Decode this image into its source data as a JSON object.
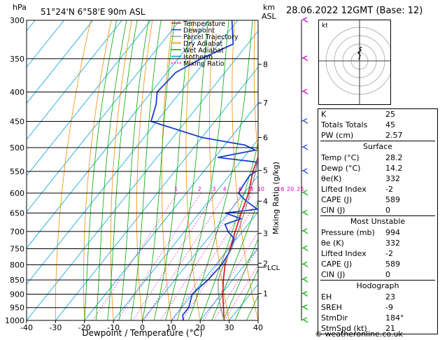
{
  "header": {
    "pressure_unit": "hPa",
    "location": "51°24'N  6°58'E  90m  ASL",
    "height_unit_line1": "km",
    "height_unit_line2": "ASL",
    "datetime": "28.06.2022  12GMT  (Base: 12)"
  },
  "legend": [
    {
      "label": "Temperature",
      "color": "#e02020",
      "dash": ""
    },
    {
      "label": "Dewpoint",
      "color": "#1a3fd0",
      "dash": ""
    },
    {
      "label": "Parcel Trajectory",
      "color": "#999999",
      "dash": ""
    },
    {
      "label": "Dry Adiabat",
      "color": "#f08c00",
      "dash": ""
    },
    {
      "label": "Wet Adiabat",
      "color": "#00aa00",
      "dash": ""
    },
    {
      "label": "Isotherm",
      "color": "#00a0e0",
      "dash": ""
    },
    {
      "label": "Mixing Ratio",
      "color": "#e000c0",
      "dash": "2,2"
    }
  ],
  "chart_data": {
    "type": "line",
    "xlabel": "Dewpoint / Temperature (°C)",
    "ylabel_right": "Mixing Ratio (g/kg)",
    "x_ticks": [
      -40,
      -30,
      -20,
      -10,
      0,
      10,
      20,
      30,
      40
    ],
    "pressure_levels": [
      300,
      350,
      400,
      450,
      500,
      550,
      600,
      650,
      700,
      750,
      800,
      850,
      900,
      950,
      1000
    ],
    "height_km": [
      {
        "km": 8,
        "p": 358
      },
      {
        "km": 7,
        "p": 418
      },
      {
        "km": 6,
        "p": 480
      },
      {
        "km": 5,
        "p": 548
      },
      {
        "km": 4,
        "p": 620
      },
      {
        "km": 3,
        "p": 705
      },
      {
        "km": 2,
        "p": 795
      },
      {
        "km": 1,
        "p": 898
      }
    ],
    "lcl_label": "LCL",
    "lcl_p": 808,
    "mixing_ratio_labels": [
      "1",
      "2",
      "3",
      "4",
      "6",
      "8",
      "10",
      "16",
      "20",
      "25"
    ],
    "series": [
      {
        "name": "Temperature",
        "color": "#e02020",
        "points": [
          [
            1000,
            28.2
          ],
          [
            950,
            24.5
          ],
          [
            900,
            20.5
          ],
          [
            850,
            16.8
          ],
          [
            800,
            13.2
          ],
          [
            750,
            10.5
          ],
          [
            700,
            7.5
          ],
          [
            650,
            4.5
          ],
          [
            600,
            1.5
          ],
          [
            550,
            -3
          ],
          [
            500,
            -6.5
          ],
          [
            450,
            -11
          ],
          [
            400,
            -17.5
          ],
          [
            350,
            -25
          ],
          [
            300,
            -33
          ]
        ]
      },
      {
        "name": "Dewpoint",
        "color": "#1a3fd0",
        "points": [
          [
            1000,
            14.2
          ],
          [
            980,
            12.5
          ],
          [
            950,
            12.5
          ],
          [
            920,
            11
          ],
          [
            900,
            10
          ],
          [
            880,
            10.5
          ],
          [
            850,
            11.5
          ],
          [
            800,
            12
          ],
          [
            750,
            11
          ],
          [
            720,
            9
          ],
          [
            700,
            5
          ],
          [
            680,
            2
          ],
          [
            665,
            6
          ],
          [
            650,
            -1
          ],
          [
            640,
            9
          ],
          [
            620,
            3
          ],
          [
            600,
            -2
          ],
          [
            560,
            -3
          ],
          [
            550,
            -2
          ],
          [
            530,
            -4
          ],
          [
            520,
            -19
          ],
          [
            505,
            -8
          ],
          [
            495,
            -13
          ],
          [
            480,
            -30
          ],
          [
            450,
            -52
          ],
          [
            420,
            -55
          ],
          [
            400,
            -58
          ],
          [
            370,
            -57
          ],
          [
            350,
            -52
          ],
          [
            330,
            -45
          ],
          [
            300,
            -52
          ]
        ]
      },
      {
        "name": "Parcel Trajectory",
        "color": "#999999",
        "points": [
          [
            1000,
            28.2
          ],
          [
            950,
            23.5
          ],
          [
            900,
            19
          ],
          [
            850,
            15
          ],
          [
            808,
            13
          ],
          [
            750,
            11
          ],
          [
            700,
            8.5
          ],
          [
            650,
            5.5
          ],
          [
            600,
            2
          ],
          [
            550,
            -2
          ],
          [
            500,
            -7
          ],
          [
            450,
            -12.5
          ],
          [
            400,
            -19
          ],
          [
            350,
            -27
          ],
          [
            300,
            -36
          ]
        ]
      }
    ]
  },
  "indices": {
    "rows": [
      {
        "k": "K",
        "v": "25"
      },
      {
        "k": "Totals Totals",
        "v": "45"
      },
      {
        "k": "PW (cm)",
        "v": "2.57"
      }
    ]
  },
  "surface": {
    "title": "Surface",
    "rows": [
      {
        "k": "Temp (°C)",
        "v": "28.2"
      },
      {
        "k": "Dewp (°C)",
        "v": "14.2"
      },
      {
        "k": "θe(K)",
        "v": "332"
      },
      {
        "k": "Lifted Index",
        "v": "-2"
      },
      {
        "k": "CAPE (J)",
        "v": "589"
      },
      {
        "k": "CIN (J)",
        "v": "0"
      }
    ]
  },
  "most_unstable": {
    "title": "Most Unstable",
    "rows": [
      {
        "k": "Pressure (mb)",
        "v": "994"
      },
      {
        "k": "θe (K)",
        "v": "332"
      },
      {
        "k": "Lifted Index",
        "v": "-2"
      },
      {
        "k": "CAPE (J)",
        "v": "589"
      },
      {
        "k": "CIN (J)",
        "v": "0"
      }
    ]
  },
  "hodograph": {
    "title": "Hodograph",
    "label": "kt",
    "rows": [
      {
        "k": "EH",
        "v": "23"
      },
      {
        "k": "SREH",
        "v": "-9"
      },
      {
        "k": "StmDir",
        "v": "184°"
      },
      {
        "k": "StmSpd (kt)",
        "v": "21"
      }
    ]
  },
  "footer": {
    "copyright": "© weatheronline.co.uk"
  },
  "colors": {
    "isotherm": "#00a0e0",
    "dry_adiabat": "#f08c00",
    "wet_adiabat": "#00aa00",
    "mixing_ratio": "#e000c0",
    "wind": "#00aa00",
    "wind_upper": "#c000c0",
    "wind_mid": "#1a3fd0"
  }
}
